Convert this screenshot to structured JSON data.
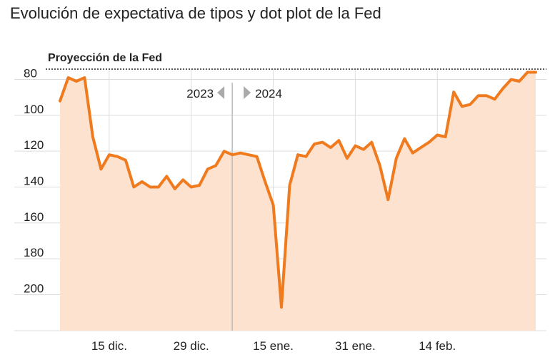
{
  "title": "Evolución de expectativa de tipos y dot plot de la Fed",
  "colors": {
    "line": "#f07a1e",
    "area": "#fde2d0",
    "grid": "#dddddd",
    "divider": "#bbbbbb",
    "marker": "#aaaaaa"
  },
  "chart_data": {
    "type": "area",
    "title": "Evolución de expectativa de tipos y dot plot de la Fed",
    "y_reversed": true,
    "ylim": [
      220,
      75
    ],
    "y_ticks": [
      80,
      100,
      120,
      140,
      160,
      180,
      200
    ],
    "x_tick_labels": [
      "15 dic.",
      "29 dic.",
      "15 ene.",
      "31 ene.",
      "14 feb."
    ],
    "x_tick_index": [
      6,
      16,
      26,
      36,
      46
    ],
    "reference_line": {
      "label": "Proyección de la Fed",
      "value": 78
    },
    "period_marker": {
      "index": 21,
      "left_label": "2023",
      "right_label": "2024"
    },
    "grid": true,
    "series": [
      {
        "values": [
          92,
          79,
          81,
          79,
          112,
          130,
          122,
          123,
          125,
          140,
          137,
          140,
          140,
          134,
          141,
          136,
          140,
          139,
          130,
          128,
          120,
          122,
          121,
          122,
          123,
          137,
          150,
          207,
          139,
          122,
          123,
          116,
          115,
          118,
          114,
          124,
          117,
          119,
          115,
          128,
          147,
          124,
          113,
          121,
          118,
          115,
          111,
          112,
          87,
          95,
          94,
          89,
          89,
          91,
          85,
          80,
          81,
          76,
          76
        ]
      }
    ]
  }
}
